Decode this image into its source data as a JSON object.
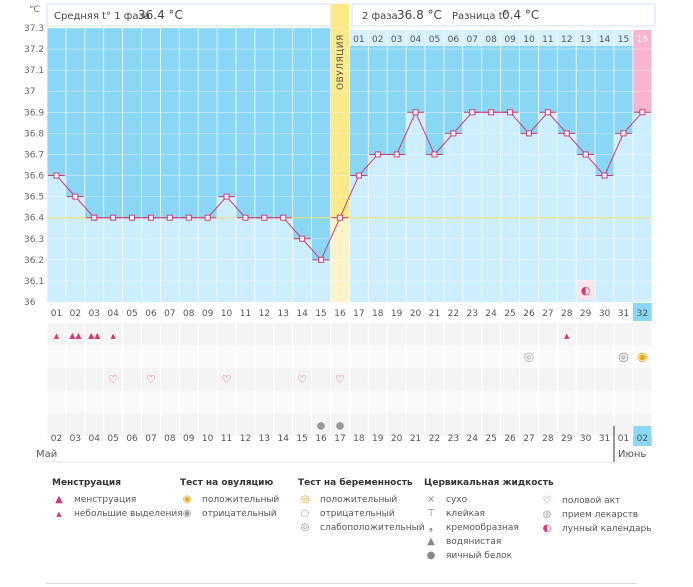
{
  "chart_data": {
    "type": "line",
    "y_unit": "°C",
    "y_ticks": [
      "37.3",
      "37.2",
      "37.1",
      "37",
      "36.9",
      "36.8",
      "36.7",
      "36.6",
      "36.5",
      "36.4",
      "36.3",
      "36.2",
      "36.1",
      "36"
    ],
    "ylim": [
      36.0,
      37.3
    ],
    "coverline": 36.4,
    "phase1": {
      "label": "Средняя t° 1 фаза",
      "value": "36.4 °C"
    },
    "phase2": {
      "label": "2 фаза",
      "value": "36.8 °C",
      "diff_label": "Разница t°",
      "diff_value": "0.4 °C"
    },
    "ovulation_label": "ОВУЛЯЦИЯ",
    "ovulation_day": 16,
    "phase2_day_numbers": [
      "01",
      "02",
      "03",
      "04",
      "05",
      "06",
      "07",
      "08",
      "09",
      "10",
      "11",
      "12",
      "13",
      "14",
      "15",
      "16"
    ],
    "cycle_days": [
      "01",
      "02",
      "03",
      "04",
      "05",
      "06",
      "07",
      "08",
      "09",
      "10",
      "11",
      "12",
      "13",
      "14",
      "15",
      "16",
      "17",
      "18",
      "19",
      "20",
      "21",
      "22",
      "23",
      "24",
      "25",
      "26",
      "27",
      "28",
      "29",
      "30",
      "31",
      "32"
    ],
    "temperatures": [
      36.6,
      36.5,
      36.4,
      36.4,
      36.4,
      36.4,
      36.4,
      36.4,
      36.4,
      36.5,
      36.4,
      36.4,
      36.4,
      36.3,
      36.2,
      36.4,
      36.6,
      36.7,
      36.7,
      36.9,
      36.7,
      36.8,
      36.9,
      36.9,
      36.9,
      36.8,
      36.9,
      36.8,
      36.7,
      36.6,
      36.8,
      36.9
    ],
    "dates": [
      "02",
      "03",
      "04",
      "05",
      "06",
      "07",
      "08",
      "09",
      "10",
      "11",
      "12",
      "13",
      "14",
      "15",
      "16",
      "17",
      "18",
      "19",
      "20",
      "21",
      "22",
      "23",
      "24",
      "25",
      "26",
      "27",
      "28",
      "29",
      "30",
      "31",
      "01",
      "02"
    ],
    "weekend_dates": [
      4,
      5,
      10,
      11,
      17,
      18,
      24,
      25,
      26
    ],
    "month_labels": [
      "Май",
      "Июнь"
    ],
    "markers": {
      "menstruation_heavy": [
        2,
        3
      ],
      "menstruation_light": [
        1,
        4,
        28
      ],
      "pregnancy_test_negative": [
        26
      ],
      "pregnancy_test_weak": [
        31
      ],
      "ovulation_test_positive": [
        32
      ],
      "intercourse": [
        4,
        6,
        10,
        14,
        16
      ],
      "cervical_eggwhite": [
        15,
        16
      ],
      "lunar": [
        29
      ]
    }
  },
  "legend": {
    "menstruation": {
      "title": "Менструация",
      "items": [
        "менструация",
        "небольшие выделения"
      ]
    },
    "ovulation_test": {
      "title": "Тест на овуляцию",
      "items": [
        "положительный",
        "отрицательный"
      ]
    },
    "pregnancy_test": {
      "title": "Тест на беременность",
      "items": [
        "положительный",
        "отрицательный",
        "слабоположительный"
      ]
    },
    "cervical": {
      "title": "Цервикальная жидкость",
      "items": [
        "сухо",
        "клейкая",
        "кремообразная",
        "водянистая",
        "яичный белок"
      ]
    },
    "other": {
      "items": [
        "половой акт",
        "прием лекарств",
        "лунный календарь"
      ]
    }
  },
  "icons": [
    "drop-icon",
    "sun-icon",
    "test-icon",
    "heart-icon",
    "moon-icon",
    "cross-icon",
    "pill-icon"
  ],
  "colors": {
    "phase1_bg": "#8ad6f5",
    "phase2_bg": "#8ad6f5",
    "fill_below": "#cdeefc",
    "ovulation_band": "#fbe98a",
    "line": "#d23a74",
    "pink_accent": "#f9b5cd",
    "current_day": "#8ad6f5"
  }
}
